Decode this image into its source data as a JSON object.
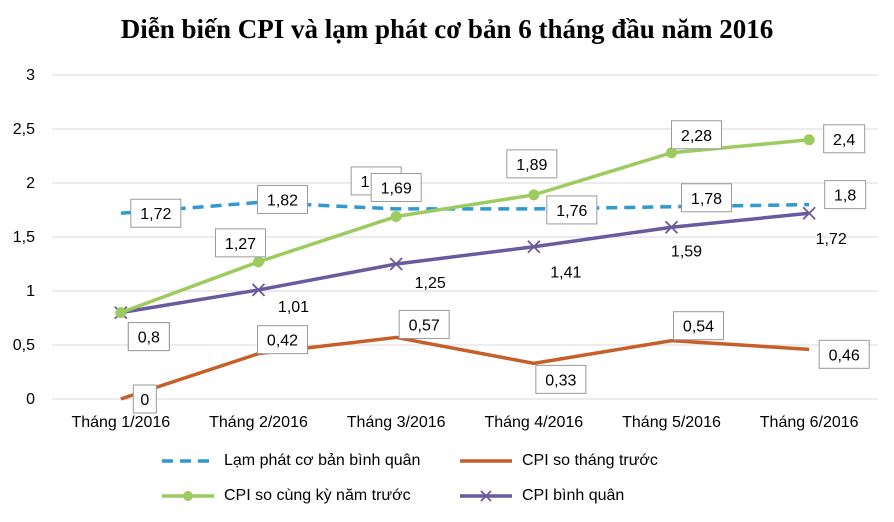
{
  "chart_data": {
    "type": "line",
    "title": "Diễn biến CPI và lạm phát cơ bản 6 tháng đầu năm 2016",
    "categories": [
      "Tháng 1/2016",
      "Tháng 2/2016",
      "Tháng 3/2016",
      "Tháng 4/2016",
      "Tháng 5/2016",
      "Tháng 6/2016"
    ],
    "ylim": [
      0,
      3
    ],
    "yticks": [
      "0",
      "0,5",
      "1",
      "1,5",
      "2",
      "2,5",
      "3"
    ],
    "grid": true,
    "legend_position": "bottom",
    "series": [
      {
        "name": "Lạm phát cơ bản bình quân",
        "color": "#2E9AD0",
        "style": "dashed",
        "marker": "none",
        "values": [
          1.72,
          1.82,
          1.76,
          1.76,
          1.78,
          1.8
        ],
        "labels": [
          "1,72",
          "1,82",
          "1,76",
          "1,76",
          "1,78",
          "1,8"
        ]
      },
      {
        "name": "CPI so tháng trước",
        "color": "#C65F2A",
        "style": "solid",
        "marker": "none",
        "values": [
          0,
          0.42,
          0.57,
          0.33,
          0.54,
          0.46
        ],
        "labels": [
          "0",
          "0,42",
          "0,57",
          "0,33",
          "0,54",
          "0,46"
        ]
      },
      {
        "name": "CPI so cùng kỳ năm trước",
        "color": "#9DCB5F",
        "style": "solid",
        "marker": "circle",
        "values": [
          0.8,
          1.27,
          1.69,
          1.89,
          2.28,
          2.4
        ],
        "labels": [
          "0,8",
          "1,27",
          "1,69",
          "1,89",
          "2,28",
          "2,4"
        ]
      },
      {
        "name": "CPI bình quân",
        "color": "#6A5A9E",
        "style": "solid",
        "marker": "x",
        "values": [
          0.8,
          1.01,
          1.25,
          1.41,
          1.59,
          1.72
        ],
        "labels": [
          "0,8",
          "1,01",
          "1,25",
          "1,41",
          "1,59",
          "1,72"
        ]
      }
    ]
  }
}
